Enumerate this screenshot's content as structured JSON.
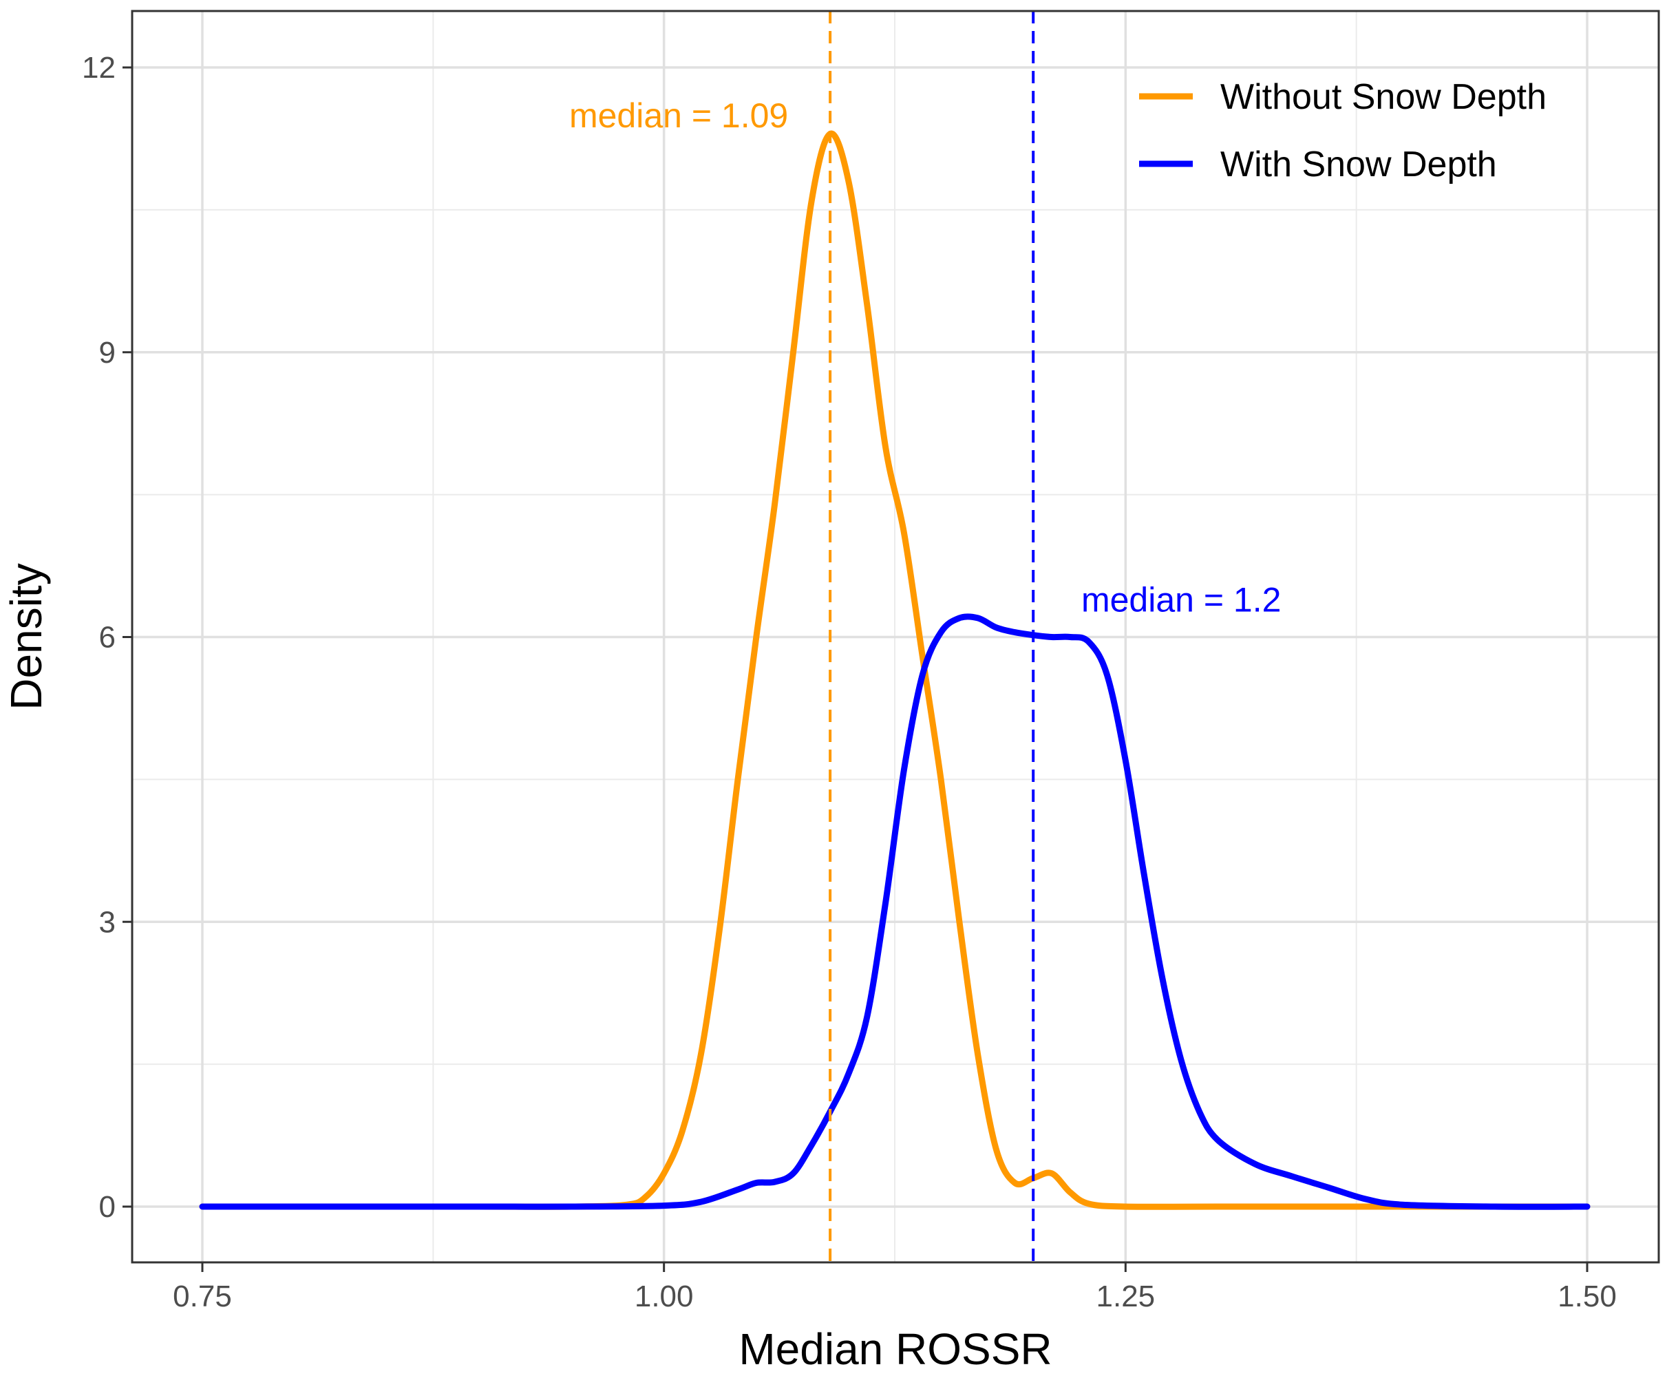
{
  "chart_data": {
    "type": "line",
    "subtype": "density",
    "title": "",
    "xlabel": "Median ROSSR",
    "ylabel": "Density",
    "xlim": [
      0.75,
      1.5
    ],
    "ylim": [
      0,
      12
    ],
    "x_ticks": [
      "0.75",
      "1.00",
      "1.25",
      "1.50"
    ],
    "y_ticks": [
      "0",
      "3",
      "6",
      "9",
      "12"
    ],
    "grid": true,
    "legend_position": "top-right",
    "series": [
      {
        "name": "Without Snow Depth",
        "color": "#FF9900",
        "points": [
          [
            0.75,
            0
          ],
          [
            0.8,
            0
          ],
          [
            0.85,
            0
          ],
          [
            0.9,
            0
          ],
          [
            0.95,
            0
          ],
          [
            0.98,
            0.02
          ],
          [
            0.99,
            0.1
          ],
          [
            1.0,
            0.35
          ],
          [
            1.01,
            0.8
          ],
          [
            1.02,
            1.6
          ],
          [
            1.03,
            2.9
          ],
          [
            1.04,
            4.5
          ],
          [
            1.05,
            6.0
          ],
          [
            1.06,
            7.4
          ],
          [
            1.07,
            9.0
          ],
          [
            1.08,
            10.6
          ],
          [
            1.09,
            11.3
          ],
          [
            1.1,
            10.8
          ],
          [
            1.11,
            9.5
          ],
          [
            1.12,
            8.0
          ],
          [
            1.13,
            7.1
          ],
          [
            1.14,
            5.8
          ],
          [
            1.15,
            4.5
          ],
          [
            1.16,
            3.0
          ],
          [
            1.17,
            1.6
          ],
          [
            1.18,
            0.6
          ],
          [
            1.19,
            0.25
          ],
          [
            1.2,
            0.3
          ],
          [
            1.21,
            0.35
          ],
          [
            1.22,
            0.15
          ],
          [
            1.23,
            0.03
          ],
          [
            1.25,
            0
          ],
          [
            1.3,
            0
          ],
          [
            1.4,
            0
          ],
          [
            1.5,
            0
          ]
        ]
      },
      {
        "name": "With Snow Depth",
        "color": "#0000FF",
        "points": [
          [
            0.75,
            0
          ],
          [
            0.8,
            0
          ],
          [
            0.85,
            0
          ],
          [
            0.9,
            0
          ],
          [
            0.95,
            0
          ],
          [
            1.0,
            0.01
          ],
          [
            1.02,
            0.05
          ],
          [
            1.04,
            0.18
          ],
          [
            1.05,
            0.25
          ],
          [
            1.06,
            0.26
          ],
          [
            1.07,
            0.35
          ],
          [
            1.08,
            0.65
          ],
          [
            1.09,
            1.0
          ],
          [
            1.1,
            1.4
          ],
          [
            1.11,
            2.0
          ],
          [
            1.12,
            3.2
          ],
          [
            1.13,
            4.6
          ],
          [
            1.14,
            5.6
          ],
          [
            1.15,
            6.05
          ],
          [
            1.16,
            6.2
          ],
          [
            1.17,
            6.2
          ],
          [
            1.18,
            6.1
          ],
          [
            1.19,
            6.05
          ],
          [
            1.2,
            6.02
          ],
          [
            1.21,
            6.0
          ],
          [
            1.22,
            6.0
          ],
          [
            1.23,
            5.95
          ],
          [
            1.24,
            5.6
          ],
          [
            1.25,
            4.7
          ],
          [
            1.26,
            3.5
          ],
          [
            1.27,
            2.4
          ],
          [
            1.28,
            1.55
          ],
          [
            1.29,
            1.0
          ],
          [
            1.3,
            0.7
          ],
          [
            1.32,
            0.45
          ],
          [
            1.34,
            0.32
          ],
          [
            1.36,
            0.2
          ],
          [
            1.38,
            0.08
          ],
          [
            1.4,
            0.02
          ],
          [
            1.45,
            0
          ],
          [
            1.5,
            0
          ]
        ]
      }
    ],
    "vlines": [
      {
        "x": 1.09,
        "color": "#FF9900",
        "style": "dashed"
      },
      {
        "x": 1.2,
        "color": "#0000FF",
        "style": "dashed"
      }
    ],
    "annotations": [
      {
        "text": "median = 1.09",
        "x": 1.09,
        "y": 11.5,
        "color": "#FF9900"
      },
      {
        "text": "median = 1.2",
        "x": 1.2,
        "y": 6.4,
        "color": "#0000FF"
      }
    ]
  }
}
